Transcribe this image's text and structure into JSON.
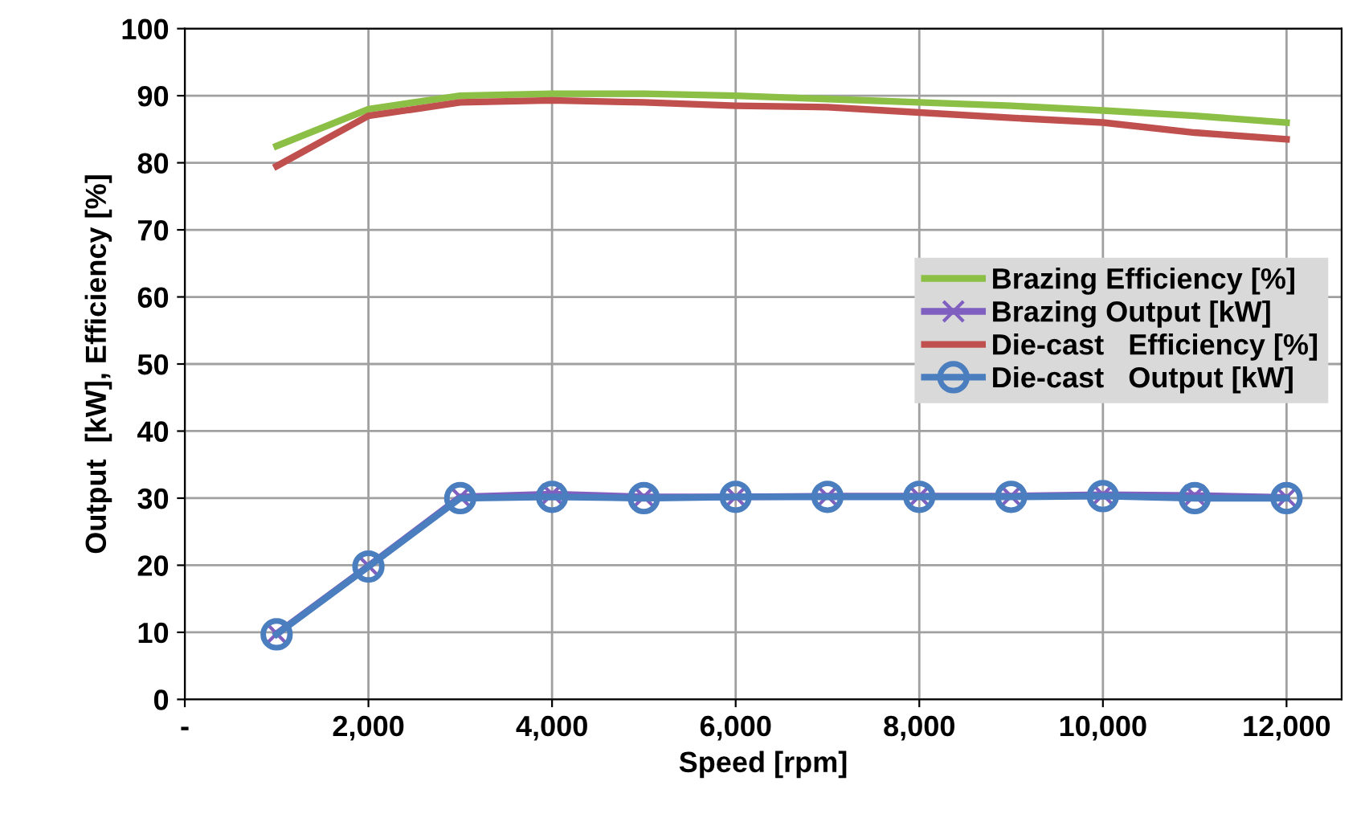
{
  "chart_data": {
    "type": "line",
    "xlabel": "Speed [rpm]",
    "ylabel": "Output  [kW], Efficiency [%]",
    "x": [
      1000,
      2000,
      3000,
      4000,
      5000,
      6000,
      7000,
      8000,
      9000,
      10000,
      11000,
      12000
    ],
    "series": [
      {
        "name": "Brazing Efficiency [%]",
        "color": "#8cbf45",
        "marker": "none",
        "values": [
          82.5,
          88,
          90,
          90.3,
          90.3,
          90,
          89.5,
          89,
          88.5,
          87.8,
          87,
          86
        ]
      },
      {
        "name": "Brazing Output [kW]",
        "color": "#7f5fbf",
        "marker": "cross",
        "values": [
          9.8,
          19.9,
          30.2,
          30.6,
          30.2,
          30.2,
          30.3,
          30.3,
          30.3,
          30.5,
          30.4,
          30.1
        ]
      },
      {
        "name": "Die-cast   Efficiency [%]",
        "color": "#c0504d",
        "marker": "none",
        "values": [
          79.5,
          87,
          89,
          89.3,
          89,
          88.5,
          88.3,
          87.5,
          86.7,
          86,
          84.5,
          83.5
        ]
      },
      {
        "name": "Die-cast   Output [kW]",
        "color": "#4a7ebf",
        "marker": "circle",
        "values": [
          9.7,
          19.8,
          30,
          30.2,
          30,
          30.2,
          30.2,
          30.2,
          30.2,
          30.3,
          30,
          30
        ]
      }
    ],
    "xlim": [
      0,
      12600
    ],
    "ylim": [
      0,
      100
    ],
    "xticks": [
      {
        "value": 0,
        "label": "-"
      },
      {
        "value": 2000,
        "label": "2,000"
      },
      {
        "value": 4000,
        "label": "4,000"
      },
      {
        "value": 6000,
        "label": "6,000"
      },
      {
        "value": 8000,
        "label": "8,000"
      },
      {
        "value": 10000,
        "label": "10,000"
      },
      {
        "value": 12000,
        "label": "12,000"
      }
    ],
    "yticks": [
      0,
      10,
      20,
      30,
      40,
      50,
      60,
      70,
      80,
      90,
      100
    ],
    "grid": true,
    "legend": "right",
    "line_style": "solid"
  }
}
